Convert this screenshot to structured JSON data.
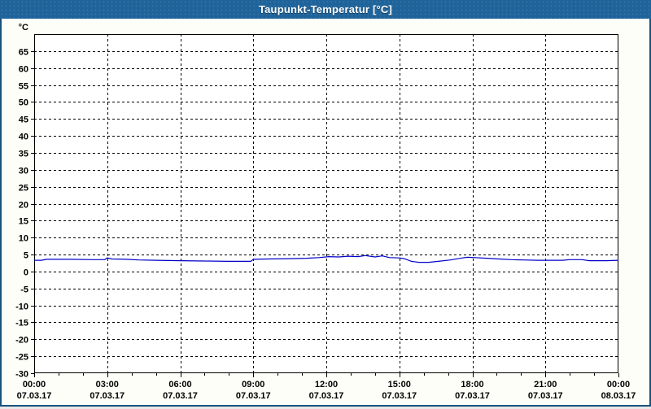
{
  "window": {
    "title": "Taupunkt-Temperatur [°C]",
    "titlebar_color": "#1f639b",
    "border_color": "#17537f",
    "background_color": "#fdfef7"
  },
  "chart_data": {
    "type": "line",
    "title": "Taupunkt-Temperatur [°C]",
    "unit_label": "°C",
    "xlabel": "",
    "ylabel": "°C",
    "ylim": [
      -30,
      70
    ],
    "xlim_hours": [
      0,
      24
    ],
    "grid": "dashed",
    "grid_color": "#000000",
    "minor_tick_hours": 1,
    "major_tick_hours": 3,
    "y_ticks": [
      65,
      60,
      55,
      50,
      45,
      40,
      35,
      30,
      25,
      20,
      15,
      10,
      5,
      0,
      -5,
      -10,
      -15,
      -20,
      -25,
      -30
    ],
    "x_ticks": [
      {
        "hour": 0,
        "time": "00:00",
        "date": "07.03.17"
      },
      {
        "hour": 3,
        "time": "03:00",
        "date": "07.03.17"
      },
      {
        "hour": 6,
        "time": "06:00",
        "date": "07.03.17"
      },
      {
        "hour": 9,
        "time": "09:00",
        "date": "07.03.17"
      },
      {
        "hour": 12,
        "time": "12:00",
        "date": "07.03.17"
      },
      {
        "hour": 15,
        "time": "15:00",
        "date": "07.03.17"
      },
      {
        "hour": 18,
        "time": "18:00",
        "date": "07.03.17"
      },
      {
        "hour": 21,
        "time": "21:00",
        "date": "07.03.17"
      },
      {
        "hour": 24,
        "time": "00:00",
        "date": "08.03.17"
      }
    ],
    "series": [
      {
        "name": "Taupunkt-Temperatur",
        "color": "#0000c8",
        "points": [
          [
            0.0,
            3.3
          ],
          [
            0.3,
            3.3
          ],
          [
            0.5,
            3.6
          ],
          [
            1.5,
            3.6
          ],
          [
            2.4,
            3.5
          ],
          [
            2.9,
            3.5
          ],
          [
            3.0,
            4.0
          ],
          [
            3.2,
            3.7
          ],
          [
            3.8,
            3.6
          ],
          [
            4.3,
            3.4
          ],
          [
            5.0,
            3.3
          ],
          [
            6.0,
            3.2
          ],
          [
            7.0,
            3.1
          ],
          [
            8.0,
            3.0
          ],
          [
            8.9,
            3.0
          ],
          [
            9.0,
            3.6
          ],
          [
            9.6,
            3.7
          ],
          [
            10.5,
            3.8
          ],
          [
            11.2,
            3.9
          ],
          [
            11.7,
            4.1
          ],
          [
            12.1,
            4.4
          ],
          [
            12.5,
            4.3
          ],
          [
            12.9,
            4.5
          ],
          [
            13.3,
            4.4
          ],
          [
            13.6,
            4.7
          ],
          [
            14.0,
            4.3
          ],
          [
            14.3,
            4.6
          ],
          [
            14.6,
            4.1
          ],
          [
            15.0,
            4.0
          ],
          [
            15.2,
            3.8
          ],
          [
            15.5,
            3.0
          ],
          [
            15.8,
            2.7
          ],
          [
            16.2,
            2.7
          ],
          [
            16.6,
            3.0
          ],
          [
            17.1,
            3.4
          ],
          [
            17.6,
            4.0
          ],
          [
            17.8,
            4.2
          ],
          [
            18.1,
            4.1
          ],
          [
            18.6,
            3.9
          ],
          [
            19.1,
            3.7
          ],
          [
            19.6,
            3.5
          ],
          [
            20.1,
            3.4
          ],
          [
            20.7,
            3.3
          ],
          [
            21.7,
            3.3
          ],
          [
            22.0,
            3.5
          ],
          [
            22.5,
            3.5
          ],
          [
            22.8,
            3.2
          ],
          [
            23.5,
            3.2
          ],
          [
            24.0,
            3.3
          ]
        ]
      }
    ]
  }
}
